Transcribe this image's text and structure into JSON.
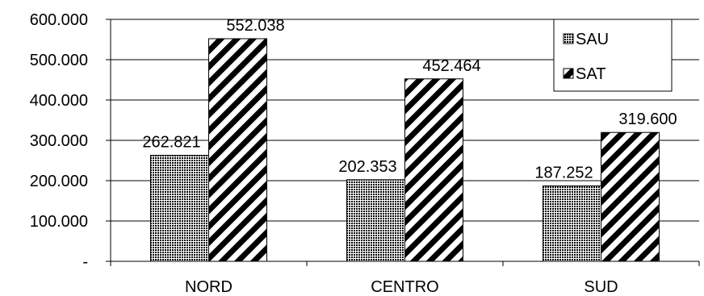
{
  "chart_data": {
    "type": "bar",
    "title": "",
    "xlabel": "",
    "ylabel": "",
    "categories": [
      "NORD",
      "CENTRO",
      "SUD"
    ],
    "series": [
      {
        "name": "SAU",
        "values": [
          262821,
          202353,
          187252
        ],
        "labels": [
          "262.821",
          "202.353",
          "187.252"
        ],
        "pattern": "dots"
      },
      {
        "name": "SAT",
        "values": [
          552038,
          452464,
          319600
        ],
        "labels": [
          "552.038",
          "452.464",
          "319.600"
        ],
        "pattern": "diagonal"
      }
    ],
    "ylim": [
      0,
      600000
    ],
    "yticks": [
      0,
      100000,
      200000,
      300000,
      400000,
      500000,
      600000
    ],
    "ytick_labels": [
      "-",
      "100.000",
      "200.000",
      "300.000",
      "400.000",
      "500.000",
      "600.000"
    ],
    "grid": true,
    "legend_position": "top-right"
  }
}
